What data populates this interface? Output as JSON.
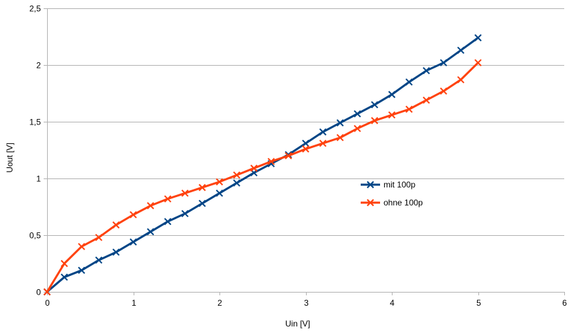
{
  "chart_data": {
    "type": "line",
    "title": "",
    "xlabel": "Uin [V]",
    "ylabel": "Uout [V]",
    "xlim": [
      0,
      6
    ],
    "ylim": [
      0,
      2.5
    ],
    "x_ticks": [
      0,
      1,
      2,
      3,
      4,
      5,
      6
    ],
    "x_tick_labels": [
      "0",
      "1",
      "2",
      "3",
      "4",
      "5",
      "6"
    ],
    "y_ticks": [
      0,
      0.5,
      1,
      1.5,
      2,
      2.5
    ],
    "y_tick_labels": [
      "0",
      "0,5",
      "1",
      "1,5",
      "2",
      "2,5"
    ],
    "grid": {
      "horizontal": true,
      "vertical": false
    },
    "legend_position": "right-center",
    "x": [
      0,
      0.2,
      0.4,
      0.6,
      0.8,
      1.0,
      1.2,
      1.4,
      1.6,
      1.8,
      2.0,
      2.2,
      2.4,
      2.6,
      2.8,
      3.0,
      3.2,
      3.4,
      3.6,
      3.8,
      4.0,
      4.2,
      4.4,
      4.6,
      4.8,
      5.0
    ],
    "series": [
      {
        "name": "mit 100p",
        "color": "#004586",
        "marker": "x",
        "values": [
          0,
          0.13,
          0.19,
          0.28,
          0.35,
          0.44,
          0.53,
          0.62,
          0.69,
          0.78,
          0.87,
          0.96,
          1.05,
          1.13,
          1.21,
          1.31,
          1.41,
          1.49,
          1.57,
          1.65,
          1.74,
          1.85,
          1.95,
          2.02,
          2.13,
          2.24
        ]
      },
      {
        "name": "ohne 100p",
        "color": "#ff420e",
        "marker": "x",
        "values": [
          0,
          0.25,
          0.4,
          0.48,
          0.59,
          0.68,
          0.76,
          0.82,
          0.87,
          0.92,
          0.97,
          1.03,
          1.09,
          1.15,
          1.2,
          1.26,
          1.31,
          1.36,
          1.44,
          1.51,
          1.56,
          1.61,
          1.69,
          1.77,
          1.87,
          2.02
        ]
      }
    ]
  }
}
